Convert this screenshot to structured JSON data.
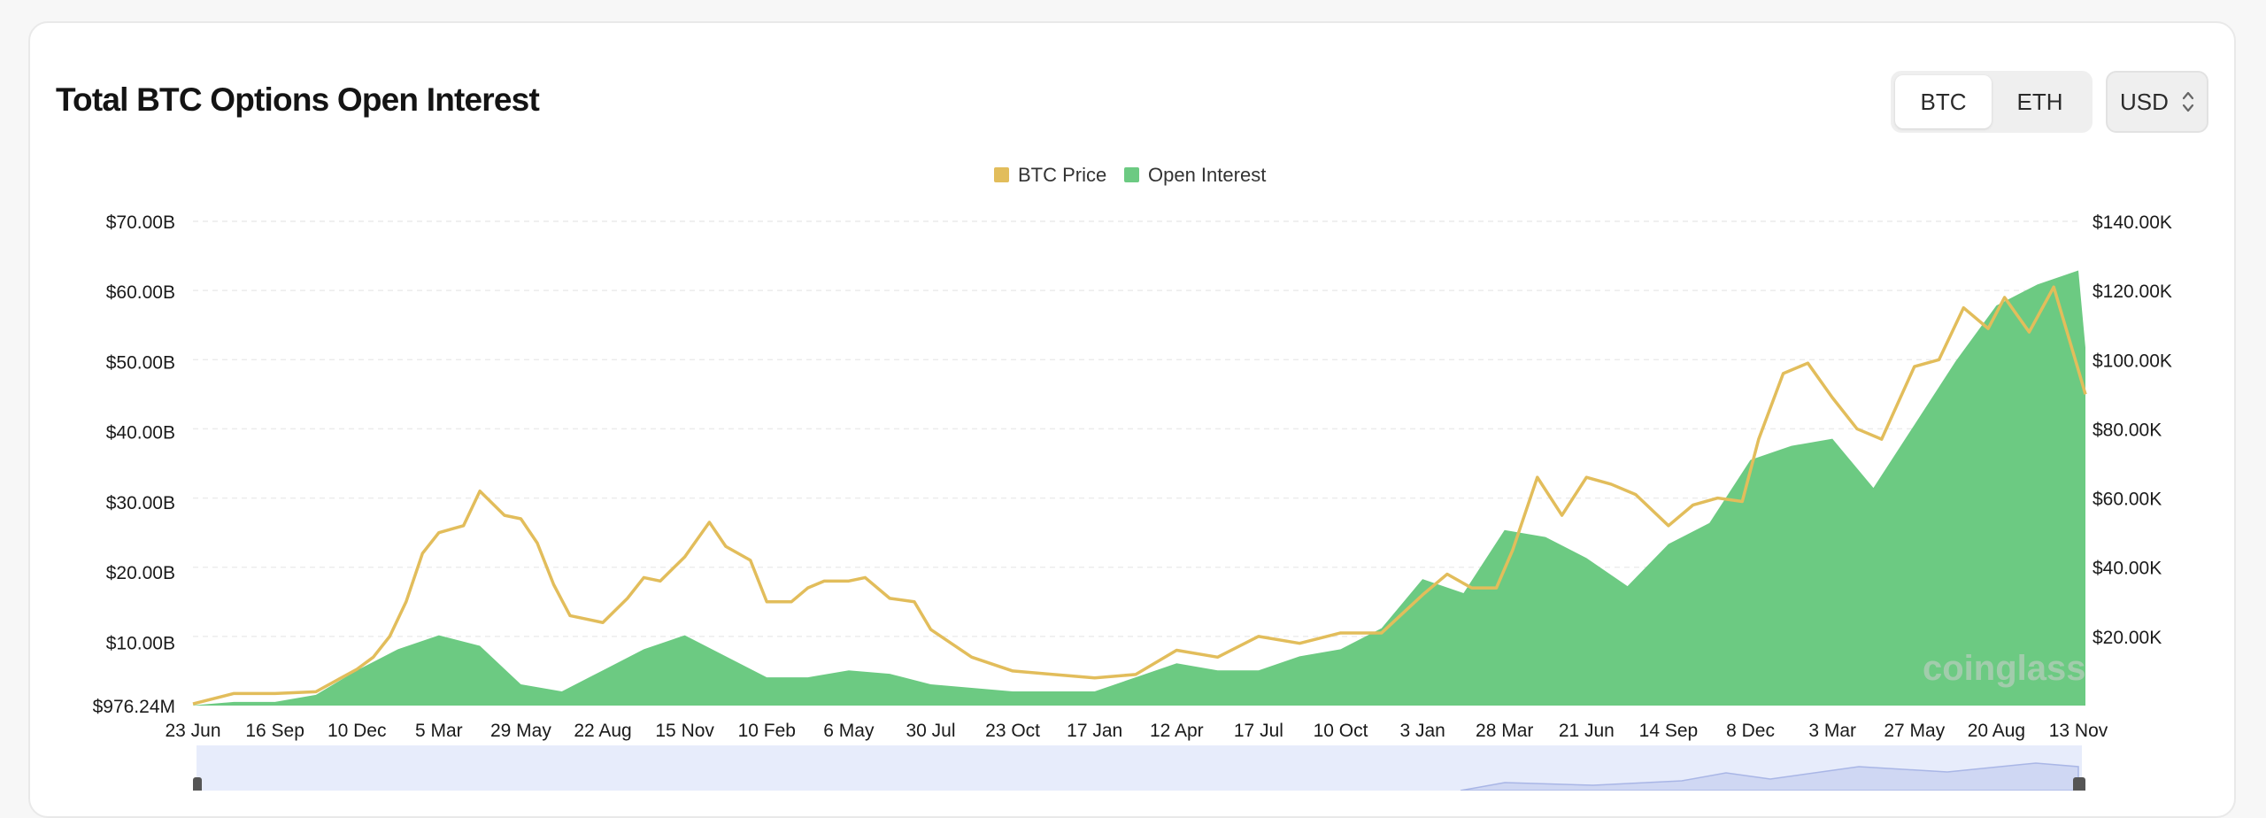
{
  "header": {
    "title": "Total BTC Options Open Interest",
    "asset_options": [
      "BTC",
      "ETH"
    ],
    "selected_asset": "BTC",
    "unit": "USD"
  },
  "colors": {
    "price_line": "#e2bd5b",
    "open_interest_fill": "#6cca82",
    "grid": "#ececec",
    "navigator_bg": "#e7ecfb"
  },
  "watermark": "coinglass",
  "chart_data": {
    "type": "area",
    "legend_position": "top-center",
    "grid": true,
    "x_tick_labels": [
      "23 Jun",
      "16 Sep",
      "10 Dec",
      "5 Mar",
      "29 May",
      "22 Aug",
      "15 Nov",
      "10 Feb",
      "6 May",
      "30 Jul",
      "23 Oct",
      "17 Jan",
      "12 Apr",
      "17 Jul",
      "10 Oct",
      "3 Jan",
      "28 Mar",
      "21 Jun",
      "14 Sep",
      "8 Dec",
      "3 Mar",
      "27 May",
      "20 Aug",
      "13 Nov"
    ],
    "y_left": {
      "tick_labels": [
        "$976.24M",
        "$10.00B",
        "$20.00B",
        "$30.00B",
        "$40.00B",
        "$50.00B",
        "$60.00B",
        "$70.00B"
      ],
      "range": [
        0.97624,
        70
      ],
      "unit": "B USD"
    },
    "y_right": {
      "tick_labels": [
        "$20.00K",
        "$40.00K",
        "$60.00K",
        "$80.00K",
        "$100.00K",
        "$120.00K",
        "$140.00K"
      ],
      "range": [
        0,
        140
      ],
      "unit": "K USD"
    },
    "x_range_index": [
      0,
      23
    ],
    "series": [
      {
        "name": "Open Interest",
        "axis": "left",
        "x": [
          0,
          0.5,
          1,
          1.5,
          2,
          2.5,
          3,
          3.5,
          4,
          4.5,
          5,
          5.5,
          6,
          6.5,
          7,
          7.5,
          8,
          8.5,
          9,
          9.5,
          10,
          10.5,
          11,
          11.5,
          12,
          12.5,
          13,
          13.5,
          14,
          14.5,
          15,
          15.5,
          16,
          16.5,
          17,
          17.5,
          18,
          18.5,
          19,
          19.5,
          20,
          20.5,
          21,
          21.5,
          22,
          22.5,
          23,
          23.35
        ],
        "values": [
          1.0,
          1.5,
          1.5,
          2.5,
          6,
          9,
          11,
          9.5,
          4,
          3,
          6,
          9,
          11,
          8,
          5,
          5,
          6,
          5.5,
          4,
          3.5,
          3,
          3,
          3,
          5,
          7,
          6,
          6,
          8,
          9,
          12,
          19,
          17,
          26,
          25,
          22,
          18,
          24,
          27,
          36,
          38,
          39,
          32,
          41,
          50,
          58,
          61,
          63,
          52
        ]
      },
      {
        "name": "BTC Price",
        "axis": "right",
        "x": [
          0,
          0.5,
          1,
          1.5,
          2,
          2.2,
          2.4,
          2.6,
          2.8,
          3,
          3.3,
          3.5,
          3.8,
          4,
          4.2,
          4.4,
          4.6,
          4.8,
          5,
          5.3,
          5.5,
          5.7,
          6,
          6.3,
          6.5,
          6.8,
          7,
          7.3,
          7.5,
          7.7,
          8,
          8.2,
          8.5,
          8.8,
          9,
          9.5,
          10,
          10.5,
          11,
          11.5,
          12,
          12.5,
          13,
          13.5,
          14,
          14.5,
          15,
          15.3,
          15.6,
          15.9,
          16.1,
          16.4,
          16.7,
          17,
          17.3,
          17.6,
          18,
          18.3,
          18.6,
          18.9,
          19.1,
          19.4,
          19.7,
          20,
          20.3,
          20.6,
          21,
          21.3,
          21.6,
          21.9,
          22.1,
          22.4,
          22.7,
          23,
          23.35
        ],
        "values": [
          0.5,
          3.5,
          3.5,
          4,
          10.5,
          14,
          20,
          30,
          44,
          50,
          52,
          62,
          55,
          54,
          47,
          35,
          26,
          25,
          24,
          31,
          37,
          36,
          43,
          53,
          46,
          42,
          30,
          30,
          34,
          36,
          36,
          37,
          31,
          30,
          22,
          14,
          10,
          9,
          8,
          9,
          16,
          14,
          20,
          18,
          21,
          21,
          32,
          38,
          34,
          34,
          45,
          66,
          55,
          66,
          64,
          61,
          52,
          58,
          60,
          59,
          77,
          96,
          99,
          89,
          80,
          77,
          98,
          100,
          115,
          109,
          118,
          108,
          121,
          97,
          90
        ]
      }
    ]
  }
}
